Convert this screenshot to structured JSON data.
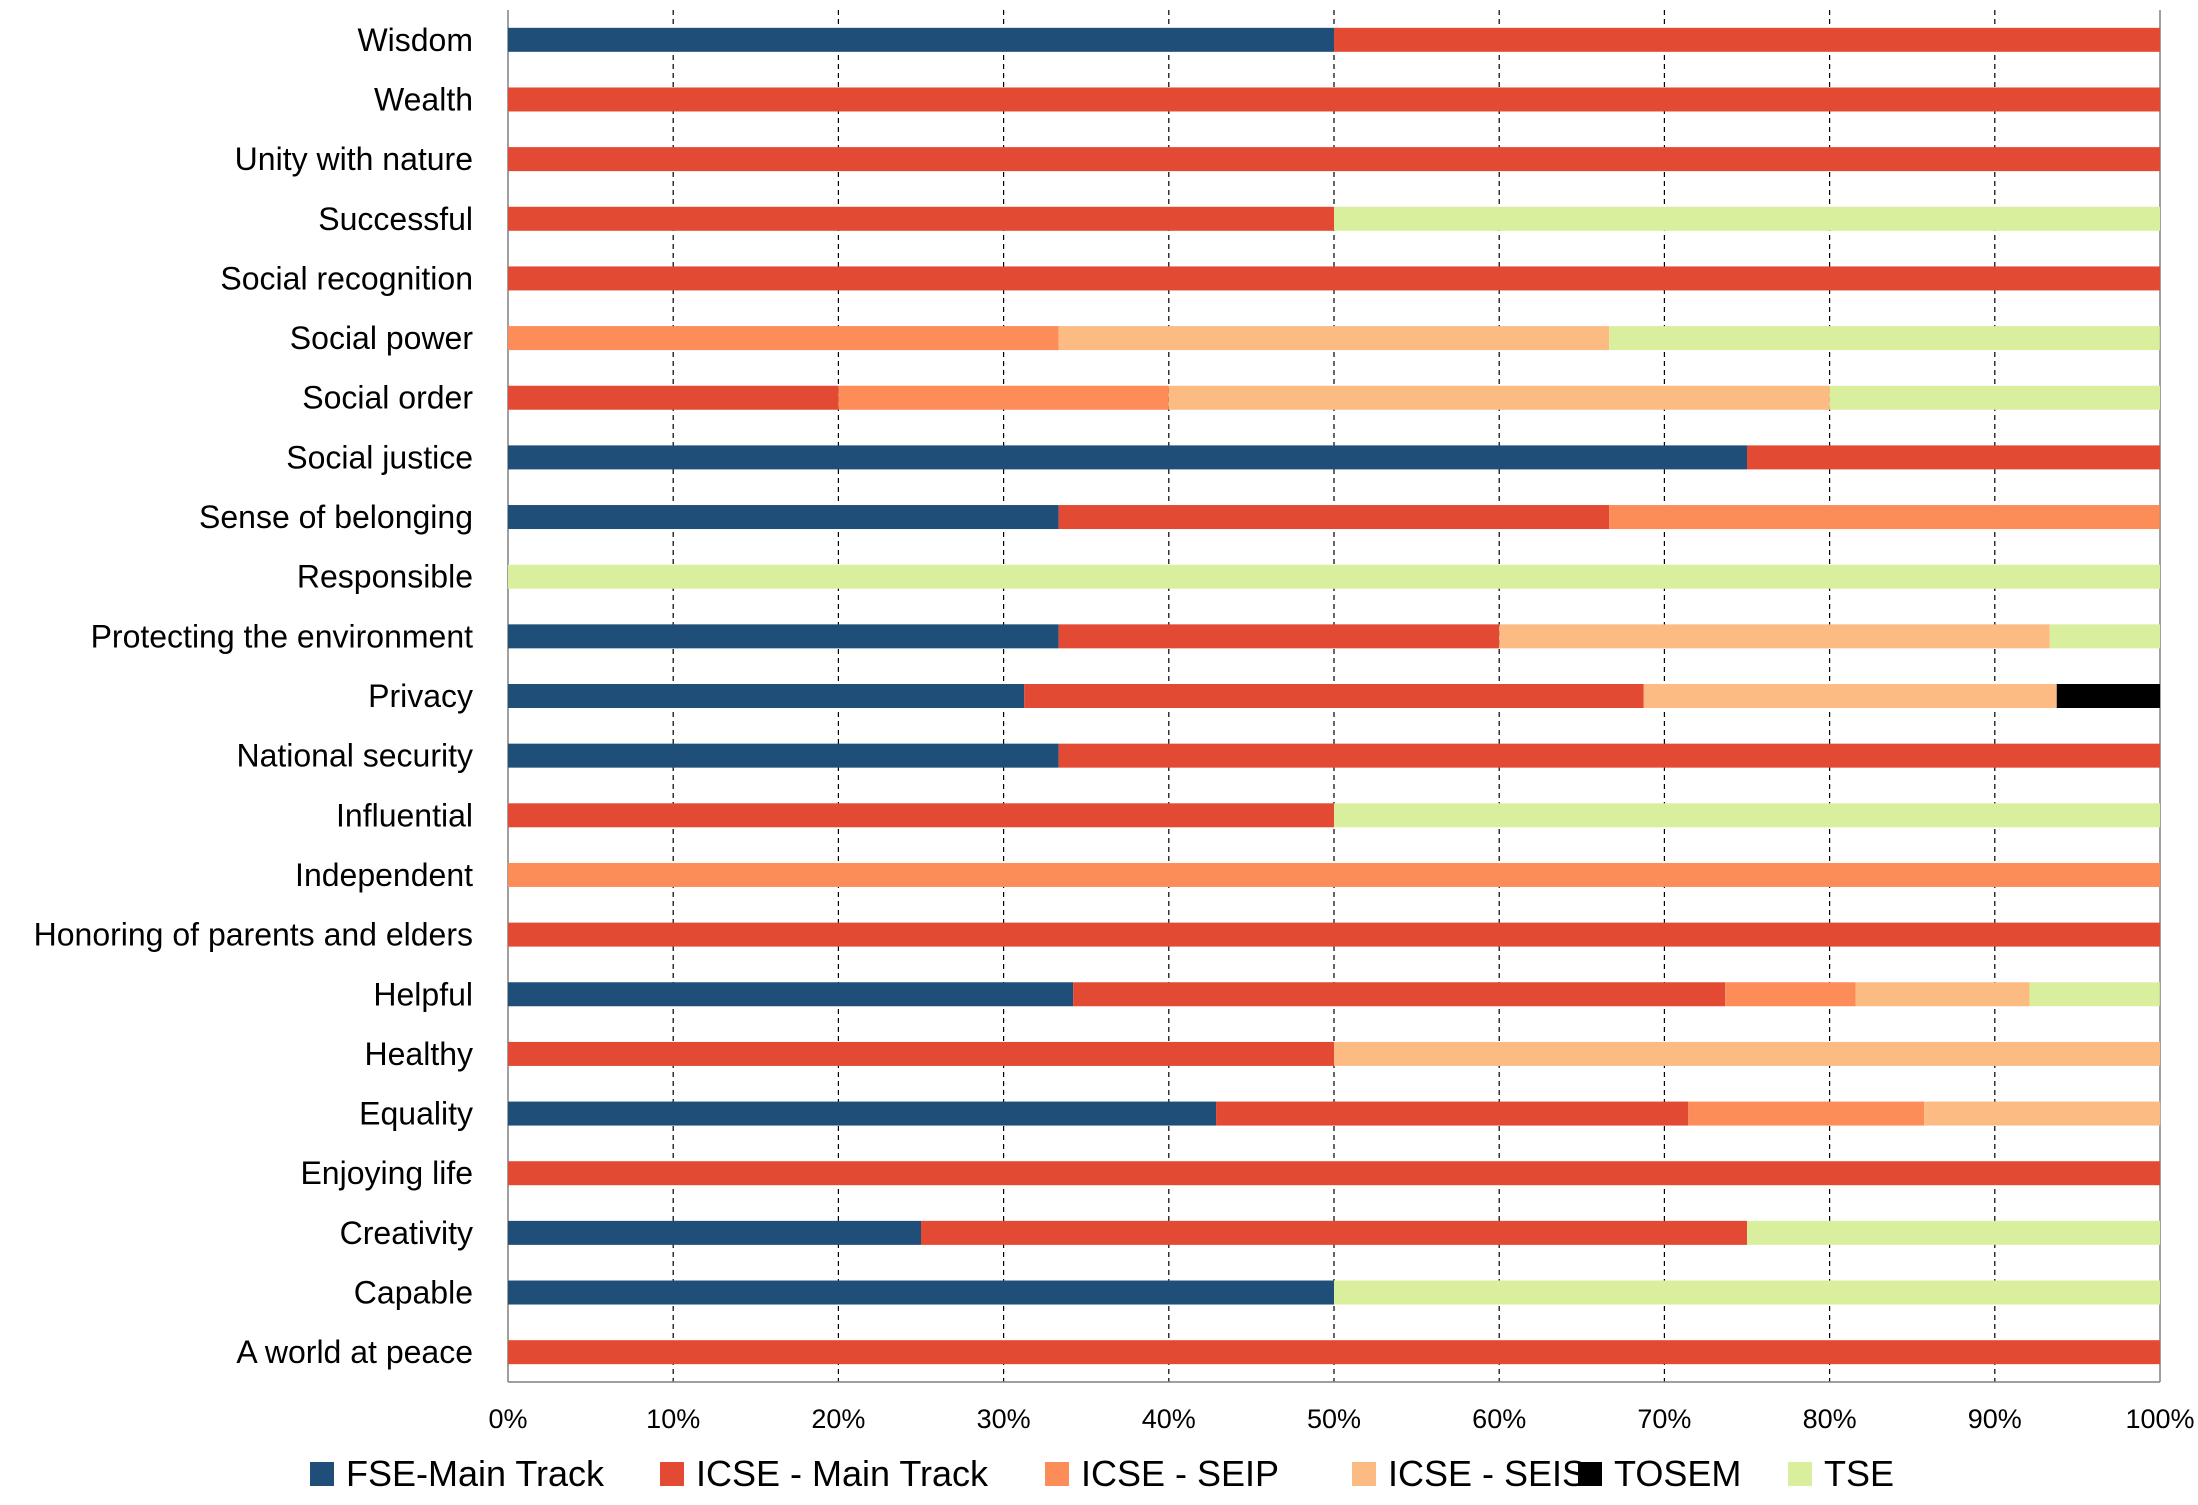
{
  "chart_data": {
    "type": "bar",
    "orientation": "horizontal",
    "stacked": true,
    "percent_stacked": true,
    "categories": [
      "Wisdom",
      "Wealth",
      "Unity with nature",
      "Successful",
      "Social recognition",
      "Social power",
      "Social order",
      "Social justice",
      "Sense of belonging",
      "Responsible",
      "Protecting the environment",
      "Privacy",
      "National security",
      "Influential",
      "Independent",
      "Honoring of parents and elders",
      "Helpful",
      "Healthy",
      "Equality",
      "Enjoying life",
      "Creativity",
      "Capable",
      "A world at peace"
    ],
    "series": [
      {
        "name": "FSE-Main Track",
        "color": "#1f4e79",
        "values": [
          0.5,
          0,
          0,
          0,
          0,
          0,
          0,
          0.75,
          0.3333,
          0,
          0.3333,
          0.3125,
          0.3333,
          0,
          0,
          0,
          0.3421,
          0,
          0.4286,
          0,
          0.25,
          0.5,
          0
        ]
      },
      {
        "name": "ICSE - Main Track",
        "color": "#e34a33",
        "values": [
          0.5,
          1,
          1,
          0.5,
          1,
          0,
          0.2,
          0.25,
          0.3333,
          0,
          0.2667,
          0.375,
          0.6667,
          0.5,
          0,
          1,
          0.3947,
          0.5,
          0.2857,
          1,
          0.5,
          0,
          1
        ]
      },
      {
        "name": "ICSE - SEIP",
        "color": "#fc8d59",
        "values": [
          0,
          0,
          0,
          0,
          0,
          0.3333,
          0.2,
          0,
          0.3333,
          0,
          0,
          0,
          0,
          0,
          1,
          0,
          0.0789,
          0,
          0.1429,
          0,
          0,
          0,
          0
        ]
      },
      {
        "name": "ICSE - SEIS",
        "color": "#fdbb84",
        "values": [
          0,
          0,
          0,
          0,
          0,
          0.3333,
          0.4,
          0,
          0,
          0,
          0.3333,
          0.25,
          0,
          0,
          0,
          0,
          0.1053,
          0.5,
          0.1429,
          0,
          0,
          0,
          0
        ]
      },
      {
        "name": "TOSEM",
        "color": "#000000",
        "values": [
          0,
          0,
          0,
          0,
          0,
          0,
          0,
          0,
          0,
          0,
          0,
          0.0625,
          0,
          0,
          0,
          0,
          0,
          0,
          0,
          0,
          0,
          0,
          0
        ]
      },
      {
        "name": "TSE",
        "color": "#d9ef9e",
        "values": [
          0,
          0,
          0,
          0.5,
          0,
          0.3333,
          0.2,
          0,
          0,
          1,
          0.0667,
          0,
          0,
          0.5,
          0,
          0,
          0.0789,
          0,
          0,
          0,
          0.25,
          0.5,
          0
        ]
      }
    ],
    "x_ticks": [
      "0%",
      "10%",
      "20%",
      "30%",
      "40%",
      "50%",
      "60%",
      "70%",
      "80%",
      "90%",
      "100%"
    ],
    "xlim": [
      0,
      1
    ],
    "title": "",
    "xlabel": "",
    "ylabel": "",
    "grid": "vertical dashed",
    "legend_position": "bottom"
  }
}
